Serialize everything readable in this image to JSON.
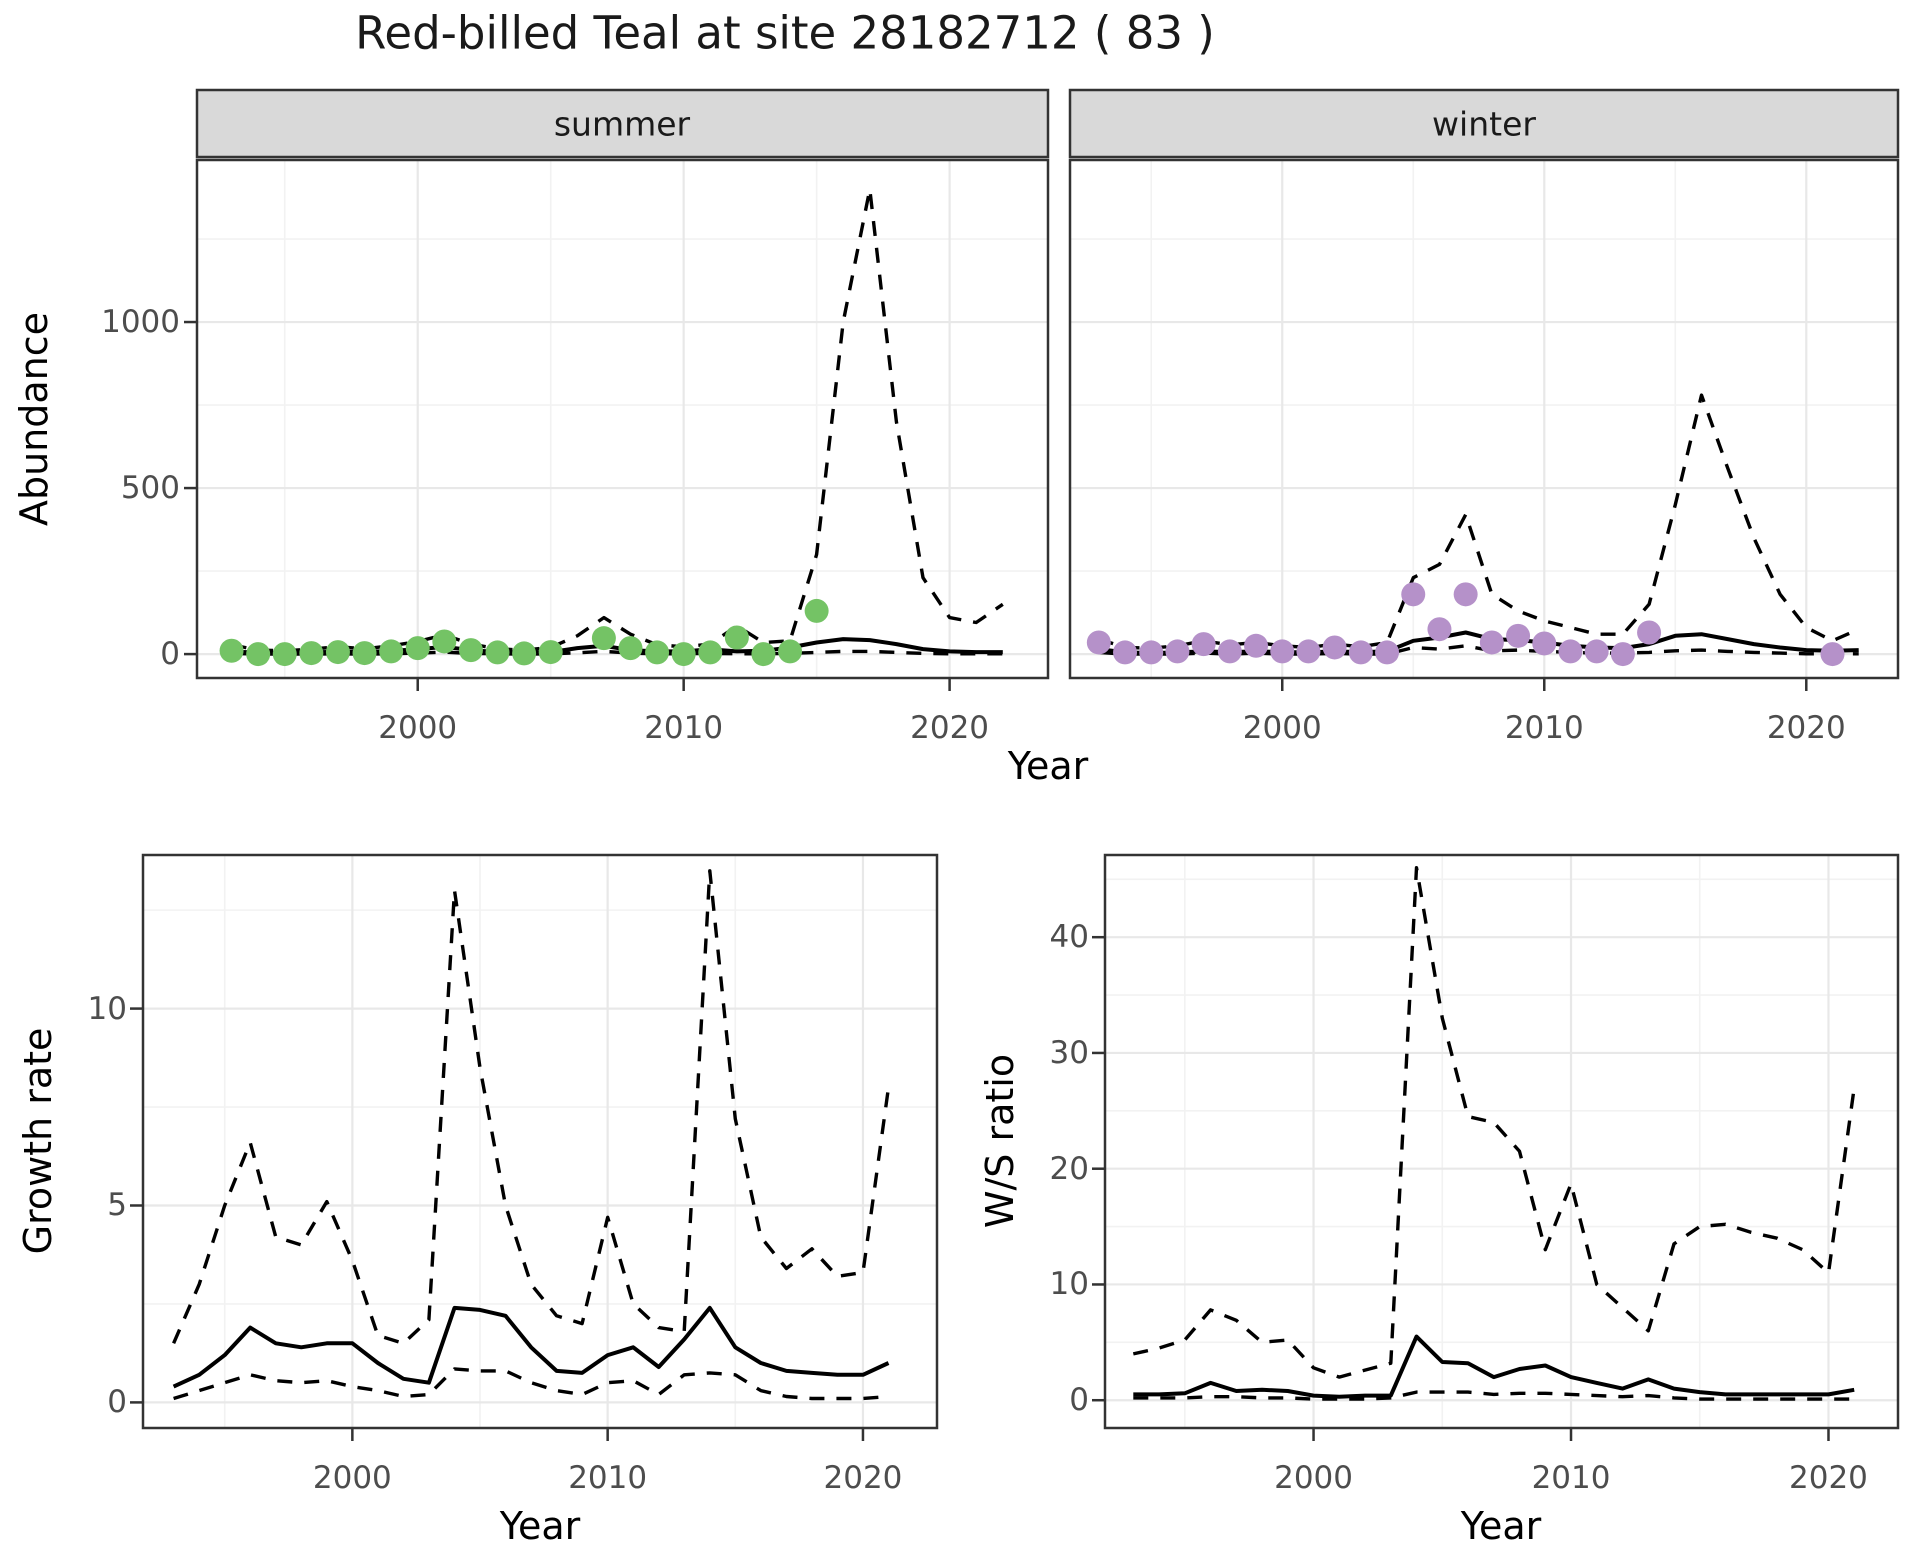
{
  "title": "Red-billed Teal at site 28182712 ( 83 )",
  "colors": {
    "point_summer": "#74c365",
    "point_winter": "#b591c9",
    "line": "#000000",
    "strip_bg": "#d9d9d9",
    "panel_border": "#333333",
    "grid_major": "#e8e8e8",
    "grid_minor": "#f2f2f2",
    "tick_text": "#4d4d4d"
  },
  "axes": {
    "abundance": {
      "ylabel": "Abundance",
      "xlabel": "Year"
    },
    "growth": {
      "ylabel": "Growth rate",
      "xlabel": "Year"
    },
    "ws": {
      "ylabel": "W/S ratio",
      "xlabel": "Year"
    }
  },
  "chart_data": [
    {
      "id": "abundance_summer",
      "type": "line",
      "facet_label": "summer",
      "xlim": [
        1991.7,
        2023.7
      ],
      "ylim": [
        -72,
        1488
      ],
      "yticks": [
        0,
        500,
        1000
      ],
      "yticks_minor": [
        250,
        750,
        1250
      ],
      "xticks": [
        2000,
        2010,
        2020
      ],
      "xticks_minor": [
        1995,
        2005,
        2015
      ],
      "points": {
        "color": "#74c365",
        "x": [
          1993,
          1994,
          1995,
          1996,
          1997,
          1998,
          1999,
          2000,
          2001,
          2002,
          2003,
          2004,
          2005,
          2007,
          2008,
          2009,
          2010,
          2011,
          2012,
          2013,
          2014,
          2015
        ],
        "y": [
          10,
          0,
          0,
          3,
          6,
          3,
          8,
          18,
          38,
          12,
          5,
          2,
          6,
          48,
          18,
          5,
          0,
          5,
          50,
          0,
          8,
          130
        ]
      },
      "series": [
        {
          "name": "lower_ci",
          "style": "dashed",
          "x0": 1993,
          "y": [
            2,
            0,
            0,
            0,
            1,
            0,
            1,
            3,
            6,
            2,
            1,
            0,
            1,
            4,
            8,
            3,
            1,
            1,
            2,
            1,
            1,
            2,
            5,
            8,
            8,
            5,
            2,
            1,
            1,
            1
          ]
        },
        {
          "name": "upper_ci",
          "style": "dashed",
          "x0": 1993,
          "y": [
            28,
            12,
            10,
            15,
            22,
            16,
            25,
            38,
            58,
            30,
            16,
            12,
            20,
            55,
            110,
            60,
            28,
            22,
            30,
            85,
            35,
            40,
            300,
            1000,
            1400,
            700,
            230,
            110,
            95,
            150
          ]
        },
        {
          "name": "median",
          "style": "solid",
          "x0": 1993,
          "y": [
            8,
            4,
            4,
            5,
            7,
            6,
            10,
            14,
            22,
            12,
            6,
            4,
            6,
            18,
            25,
            12,
            8,
            8,
            14,
            8,
            10,
            20,
            35,
            45,
            42,
            30,
            15,
            8,
            6,
            6
          ]
        }
      ]
    },
    {
      "id": "abundance_winter",
      "type": "line",
      "facet_label": "winter",
      "xlim": [
        1991.9,
        2023.5
      ],
      "ylim": [
        -72,
        1488
      ],
      "yticks": [
        0,
        500,
        1000
      ],
      "yticks_minor": [
        250,
        750,
        1250
      ],
      "xticks": [
        2000,
        2010,
        2020
      ],
      "xticks_minor": [
        1995,
        2005,
        2015
      ],
      "points": {
        "color": "#b591c9",
        "x": [
          1993,
          1994,
          1995,
          1996,
          1997,
          1998,
          1999,
          2000,
          2001,
          2002,
          2003,
          2004,
          2005,
          2006,
          2007,
          2008,
          2009,
          2010,
          2011,
          2012,
          2013,
          2014,
          2021
        ],
        "y": [
          35,
          5,
          5,
          8,
          30,
          8,
          25,
          8,
          8,
          20,
          5,
          5,
          180,
          75,
          180,
          35,
          55,
          32,
          8,
          8,
          0,
          65,
          0
        ]
      },
      "series": [
        {
          "name": "lower_ci",
          "style": "dashed",
          "x0": 1993,
          "y": [
            5,
            0,
            0,
            0,
            3,
            0,
            3,
            0,
            0,
            2,
            0,
            0,
            20,
            15,
            25,
            10,
            12,
            8,
            5,
            3,
            3,
            5,
            10,
            12,
            8,
            5,
            3,
            1,
            1,
            1
          ]
        },
        {
          "name": "upper_ci",
          "style": "dashed",
          "x0": 1993,
          "y": [
            45,
            20,
            18,
            25,
            40,
            28,
            35,
            25,
            20,
            30,
            22,
            35,
            230,
            270,
            420,
            180,
            130,
            100,
            80,
            60,
            60,
            150,
            450,
            780,
            560,
            350,
            180,
            80,
            40,
            75
          ]
        },
        {
          "name": "median",
          "style": "solid",
          "x0": 1993,
          "y": [
            15,
            5,
            3,
            5,
            8,
            6,
            8,
            6,
            5,
            8,
            6,
            8,
            40,
            50,
            65,
            45,
            42,
            35,
            25,
            20,
            18,
            30,
            55,
            60,
            45,
            30,
            20,
            12,
            10,
            12
          ]
        }
      ]
    },
    {
      "id": "growth",
      "type": "line",
      "facet_label": "",
      "xlim": [
        1991.8,
        2022.9
      ],
      "ylim": [
        -0.65,
        13.9
      ],
      "yticks": [
        0,
        5,
        10
      ],
      "yticks_minor": [
        2.5,
        7.5,
        12.5
      ],
      "xticks": [
        2000,
        2010,
        2020
      ],
      "xticks_minor": [
        1995,
        2005,
        2015
      ],
      "points": null,
      "series": [
        {
          "name": "lower_ci",
          "style": "dashed",
          "x0": 1993,
          "y": [
            0.1,
            0.3,
            0.5,
            0.7,
            0.55,
            0.5,
            0.55,
            0.4,
            0.3,
            0.15,
            0.2,
            0.85,
            0.8,
            0.8,
            0.5,
            0.3,
            0.2,
            0.5,
            0.55,
            0.2,
            0.7,
            0.75,
            0.7,
            0.3,
            0.15,
            0.1,
            0.1,
            0.1,
            0.15
          ]
        },
        {
          "name": "upper_ci",
          "style": "dashed",
          "x0": 1993,
          "y": [
            1.5,
            3.0,
            5.0,
            6.6,
            4.2,
            4.0,
            5.1,
            3.6,
            1.7,
            1.5,
            2.1,
            13.0,
            8.5,
            5.0,
            3.0,
            2.2,
            2.0,
            4.7,
            2.5,
            1.9,
            1.8,
            13.5,
            7.2,
            4.2,
            3.4,
            3.9,
            3.2,
            3.3,
            8.0
          ]
        },
        {
          "name": "median",
          "style": "solid",
          "x0": 1993,
          "y": [
            0.4,
            0.7,
            1.2,
            1.9,
            1.5,
            1.4,
            1.5,
            1.5,
            1.0,
            0.6,
            0.5,
            2.4,
            2.35,
            2.2,
            1.4,
            0.8,
            0.75,
            1.2,
            1.4,
            0.9,
            1.6,
            2.4,
            1.4,
            1.0,
            0.8,
            0.75,
            0.7,
            0.7,
            1.0
          ]
        }
      ]
    },
    {
      "id": "ws",
      "type": "line",
      "facet_label": "",
      "xlim": [
        1991.9,
        2022.7
      ],
      "ylim": [
        -2.4,
        47.1
      ],
      "yticks": [
        0,
        10,
        20,
        30,
        40
      ],
      "yticks_minor": [
        5,
        15,
        25,
        35,
        45
      ],
      "xticks": [
        2000,
        2010,
        2020
      ],
      "xticks_minor": [
        1995,
        2005,
        2015
      ],
      "points": null,
      "series": [
        {
          "name": "lower_ci",
          "style": "dashed",
          "x0": 1993,
          "y": [
            0.2,
            0.2,
            0.2,
            0.3,
            0.3,
            0.2,
            0.2,
            0.1,
            0.1,
            0.1,
            0.2,
            0.7,
            0.7,
            0.7,
            0.5,
            0.6,
            0.6,
            0.5,
            0.4,
            0.3,
            0.4,
            0.2,
            0.1,
            0.1,
            0.1,
            0.1,
            0.1,
            0.1,
            0.1
          ]
        },
        {
          "name": "upper_ci",
          "style": "dashed",
          "x0": 1993,
          "y": [
            4.0,
            4.5,
            5.2,
            7.8,
            6.9,
            5.0,
            5.2,
            2.8,
            2.0,
            2.6,
            3.2,
            46,
            33,
            24.5,
            24,
            21.5,
            13,
            18.7,
            10,
            8,
            6,
            13.5,
            15,
            15.2,
            14.5,
            14,
            13,
            11,
            27
          ]
        },
        {
          "name": "median",
          "style": "solid",
          "x0": 1993,
          "y": [
            0.5,
            0.5,
            0.6,
            1.5,
            0.8,
            0.9,
            0.8,
            0.4,
            0.3,
            0.4,
            0.4,
            5.5,
            3.3,
            3.2,
            2.0,
            2.7,
            3.0,
            2.0,
            1.5,
            1.0,
            1.8,
            1.0,
            0.7,
            0.5,
            0.5,
            0.5,
            0.5,
            0.5,
            0.9
          ]
        }
      ]
    }
  ]
}
